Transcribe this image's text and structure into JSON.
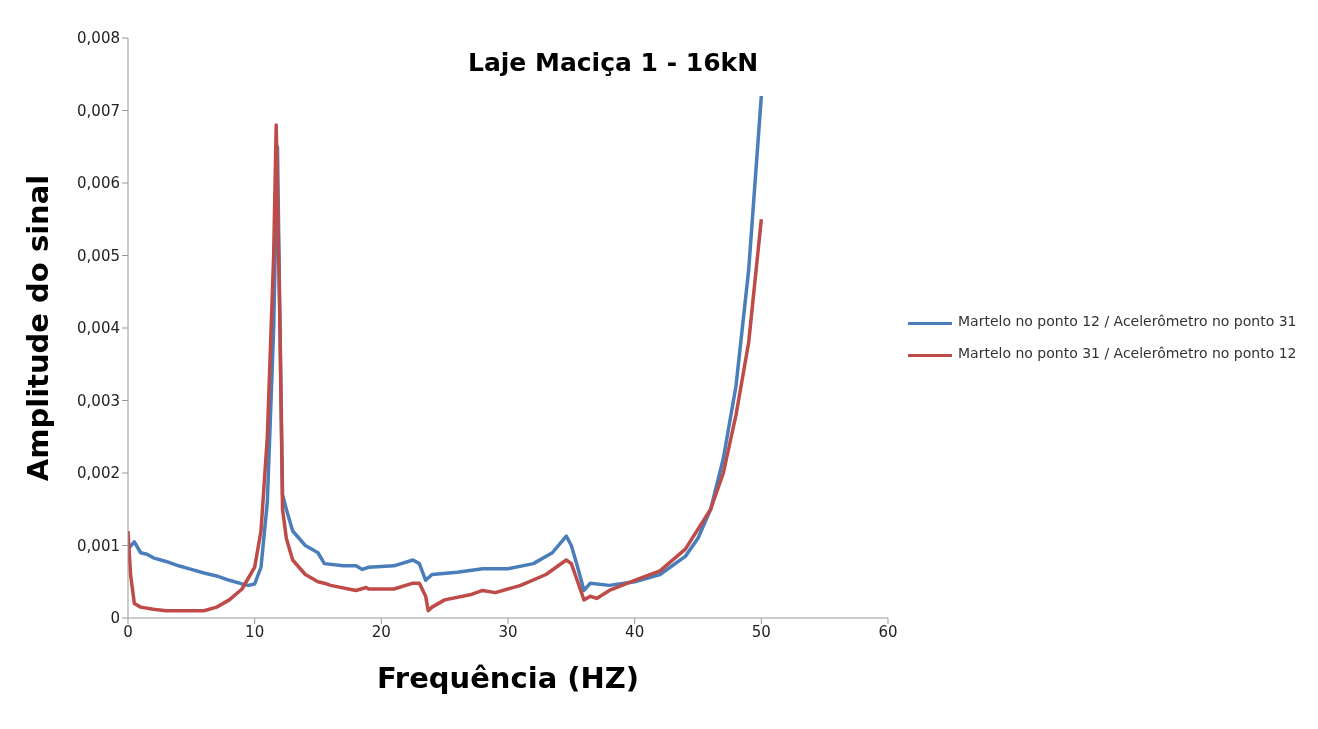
{
  "chart_data": {
    "type": "line",
    "title": "Laje Maciça 1 - 16kN",
    "xlabel": "Frequência (HZ)",
    "ylabel": "Amplitude do sinal",
    "xlim": [
      0,
      60
    ],
    "xticks": [
      0,
      10,
      20,
      30,
      40,
      50,
      60
    ],
    "ylim": [
      0,
      0.008
    ],
    "yticks": [
      0,
      {
        "value": 0.001,
        "label": "0,001"
      },
      {
        "value": 0.002,
        "label": "0,002"
      },
      {
        "value": 0.003,
        "label": "0,003"
      },
      {
        "value": 0.004,
        "label": "0,004"
      },
      {
        "value": 0.005,
        "label": "0,005"
      },
      {
        "value": 0.006,
        "label": "0,006"
      },
      {
        "value": 0.007,
        "label": "0,007"
      },
      {
        "value": 0.008,
        "label": "0,008"
      }
    ],
    "grid": false,
    "legend": "right",
    "marker": "none",
    "line_style": "solid",
    "series": [
      {
        "name": "Martelo no ponto 12 / Acelerômetro no ponto 31",
        "color": "#4a7ebb",
        "x": [
          0,
          0.5,
          1,
          1.5,
          2,
          3,
          4,
          5,
          6,
          6.5,
          7,
          8,
          9,
          9.5,
          10,
          10.5,
          11,
          11.5,
          11.8,
          12,
          12.2,
          12.5,
          13,
          14,
          15,
          15.5,
          17,
          18,
          18.5,
          19,
          21,
          22.5,
          23,
          23.5,
          24,
          26,
          28,
          30,
          32,
          33.5,
          34.6,
          35,
          35.5,
          36,
          36.5,
          38,
          40,
          42,
          44,
          45,
          46,
          47,
          48,
          49,
          50
        ],
        "values": [
          0.00095,
          0.00105,
          0.0009,
          0.00088,
          0.00083,
          0.00078,
          0.00072,
          0.00067,
          0.00062,
          0.0006,
          0.00058,
          0.00052,
          0.00047,
          0.00045,
          0.00047,
          0.0007,
          0.0016,
          0.004,
          0.0065,
          0.004,
          0.0017,
          0.0015,
          0.0012,
          0.001,
          0.0009,
          0.00075,
          0.00072,
          0.00072,
          0.00067,
          0.0007,
          0.00072,
          0.0008,
          0.00075,
          0.00052,
          0.0006,
          0.00063,
          0.00068,
          0.00068,
          0.00075,
          0.0009,
          0.00113,
          0.001,
          0.0007,
          0.00038,
          0.00048,
          0.00045,
          0.0005,
          0.0006,
          0.00085,
          0.0011,
          0.0015,
          0.0022,
          0.0032,
          0.0048,
          0.0072
        ]
      },
      {
        "name": "Martelo no ponto 31 / Acelerômetro no ponto 12",
        "color": "#be4b48",
        "x": [
          0,
          0.2,
          0.5,
          1,
          2,
          3,
          4,
          5,
          6,
          7,
          8,
          9,
          10,
          10.5,
          11,
          11.5,
          11.7,
          12,
          12.2,
          12.5,
          13,
          14,
          15,
          15.5,
          16,
          18,
          18.8,
          19,
          21,
          22.5,
          23,
          23.5,
          23.7,
          24,
          25,
          27,
          28,
          29,
          31,
          33,
          34.6,
          35,
          35.5,
          36,
          36.5,
          37,
          38,
          40,
          42,
          44,
          46,
          47,
          48,
          49,
          50
        ],
        "values": [
          0.0012,
          0.0006,
          0.0002,
          0.00015,
          0.00012,
          0.0001,
          0.0001,
          0.0001,
          0.0001,
          0.00015,
          0.00025,
          0.0004,
          0.0007,
          0.0012,
          0.0025,
          0.005,
          0.0068,
          0.004,
          0.0015,
          0.0011,
          0.0008,
          0.0006,
          0.0005,
          0.00048,
          0.00045,
          0.00038,
          0.00042,
          0.0004,
          0.0004,
          0.00048,
          0.00048,
          0.0003,
          0.0001,
          0.00015,
          0.00025,
          0.00032,
          0.00038,
          0.00035,
          0.00045,
          0.0006,
          0.0008,
          0.00075,
          0.0005,
          0.00025,
          0.0003,
          0.00027,
          0.00038,
          0.00052,
          0.00065,
          0.00095,
          0.0015,
          0.002,
          0.0028,
          0.0038,
          0.0055
        ]
      }
    ]
  }
}
